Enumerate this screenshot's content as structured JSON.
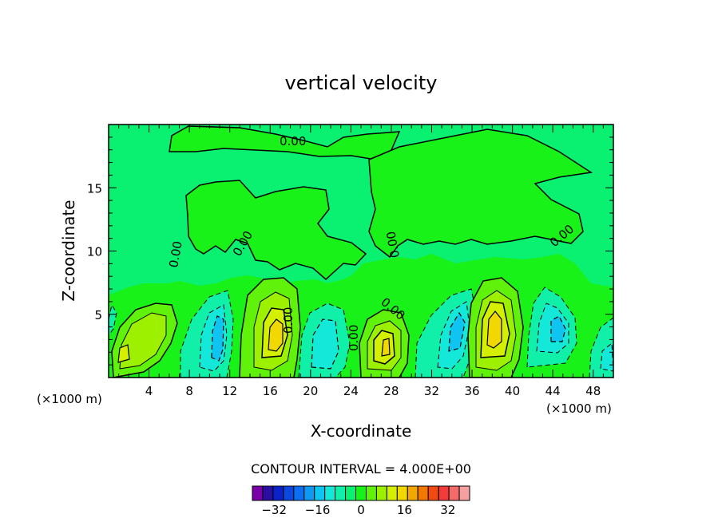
{
  "chart_data": {
    "type": "heatmap",
    "title": "vertical velocity",
    "xlabel": "X-coordinate",
    "ylabel": "Z-coordinate",
    "x_unit": "(×1000 m)",
    "x_unit_right": "(×1000 m)",
    "xlim": [
      0,
      50
    ],
    "ylim": [
      0,
      20
    ],
    "x_ticks": [
      4,
      8,
      12,
      16,
      20,
      24,
      28,
      32,
      36,
      40,
      44,
      48
    ],
    "y_ticks": [
      5,
      10,
      15
    ],
    "contour_interval_text": "CONTOUR INTERVAL = 4.000E+00",
    "contour_interval": 4,
    "zero_contour_label": "0.00",
    "colorbar": {
      "levels": [
        -40,
        -36,
        -32,
        -28,
        -24,
        -20,
        -16,
        -12,
        -8,
        -4,
        0,
        4,
        8,
        12,
        16,
        20,
        24,
        28,
        32,
        36,
        40
      ],
      "colors": [
        "#7a00a8",
        "#2a0fa0",
        "#0a22c8",
        "#0c47e0",
        "#0c6ff2",
        "#0c9af5",
        "#0fc4f0",
        "#14e8d8",
        "#10f0a8",
        "#0af070",
        "#18f218",
        "#60f20a",
        "#9cf000",
        "#d4f000",
        "#f0d800",
        "#f2a800",
        "#f27800",
        "#f24a10",
        "#f23b3b",
        "#f26a6a",
        "#f5a0a0"
      ],
      "tick_labels": [
        "−32",
        "−16",
        "0",
        "16",
        "32"
      ],
      "tick_values": [
        -32,
        -16,
        0,
        16,
        32
      ]
    },
    "cells": [
      {
        "x": 3.5,
        "z": 2.8,
        "peak": 12,
        "note": "updraft"
      },
      {
        "x": 11,
        "z": 3.2,
        "peak": -16,
        "note": "downdraft"
      },
      {
        "x": 16.5,
        "z": 3.5,
        "peak": 20,
        "note": "updraft"
      },
      {
        "x": 21.5,
        "z": 3.0,
        "peak": -12,
        "note": "downdraft"
      },
      {
        "x": 27.5,
        "z": 2.8,
        "peak": 16,
        "note": "updraft"
      },
      {
        "x": 34,
        "z": 3.2,
        "peak": -12,
        "note": "downdraft"
      },
      {
        "x": 38.5,
        "z": 3.8,
        "peak": 20,
        "note": "updraft"
      },
      {
        "x": 44,
        "z": 3.8,
        "peak": -12,
        "note": "downdraft"
      },
      {
        "x": 49,
        "z": 2.0,
        "peak": -8,
        "note": "downdraft"
      }
    ]
  }
}
